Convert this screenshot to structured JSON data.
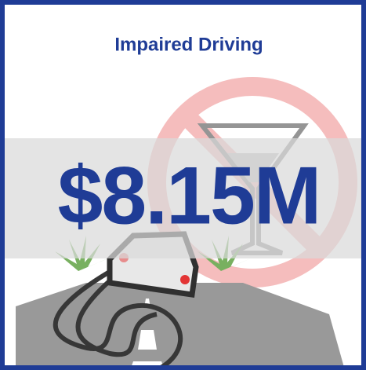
{
  "header": {
    "title": "Impaired Driving"
  },
  "metric": {
    "value": "$8.15M"
  }
}
